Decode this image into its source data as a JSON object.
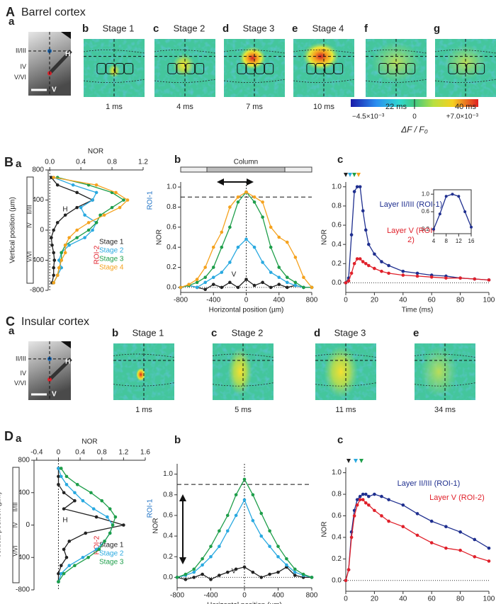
{
  "figure": {
    "sections": [
      {
        "letter": "A",
        "title": "Barrel cortex"
      },
      {
        "letter": "B"
      },
      {
        "letter": "C",
        "title": "Insular cortex"
      },
      {
        "letter": "D"
      }
    ],
    "barrel_images": [
      {
        "panel": "a",
        "layers": [
          "II/III",
          "IV",
          "V/VI"
        ],
        "marks": [
          "H",
          "V"
        ]
      },
      {
        "panel": "b",
        "stage": "Stage 1",
        "time": "1 ms"
      },
      {
        "panel": "c",
        "stage": "Stage 2",
        "time": "4 ms"
      },
      {
        "panel": "d",
        "stage": "Stage 3",
        "time": "7 ms"
      },
      {
        "panel": "e",
        "stage": "Stage 4",
        "time": "10 ms"
      },
      {
        "panel": "f",
        "time": "22 ms"
      },
      {
        "panel": "g",
        "time": "40 ms"
      }
    ],
    "insular_images": [
      {
        "panel": "a",
        "layers": [
          "II/III",
          "IV",
          "V/VI"
        ],
        "marks": [
          "H",
          "V"
        ]
      },
      {
        "panel": "b",
        "stage": "Stage 1",
        "time": "1 ms"
      },
      {
        "panel": "c",
        "stage": "Stage 2",
        "time": "5 ms"
      },
      {
        "panel": "d",
        "stage": "Stage 3",
        "time": "11 ms"
      },
      {
        "panel": "e",
        "time": "34 ms"
      }
    ],
    "colorbar": {
      "min_label": "−4.5×10⁻³",
      "mid_label": "0",
      "max_label": "+7.0×10⁻³",
      "label": "ΔF / F₀"
    }
  },
  "chart_data": [
    {
      "type": "line",
      "panel": "a",
      "xlabel": "NOR",
      "ylabel": "Vertical position (µm)",
      "x_axis_position": "top",
      "legend": "lower right",
      "layers": [
        "II/III",
        "IV",
        "V/VI"
      ],
      "xlim": [
        -0.02,
        1.2
      ],
      "xticks": [
        {
          "value": 0,
          "label": "0.0"
        },
        0.4,
        0.8,
        1.2
      ],
      "ylim": [
        -800,
        800
      ],
      "yticks": [
        800,
        400,
        0,
        -400,
        -800
      ],
      "y": [
        700,
        600,
        500,
        400,
        300,
        200,
        100,
        0,
        -100,
        -200,
        -300,
        -400,
        -500,
        -600,
        -700
      ],
      "annotations": [
        {
          "text": "ROI-1",
          "color": "#1a6fc4"
        },
        {
          "text": "ROI-2",
          "color": "#e0202a"
        },
        {
          "text": "H",
          "color": "#222222"
        }
      ],
      "series": [
        {
          "name": "Stage 1",
          "color": "#222222",
          "values": [
            0.02,
            0.1,
            0.35,
            0.55,
            0.35,
            0.2,
            0.1,
            0.05,
            0.02,
            0.03,
            0.05,
            0.06,
            0.05,
            0.05,
            0.03
          ]
        },
        {
          "name": "Stage 2",
          "color": "#29a9e0",
          "values": [
            0.05,
            0.3,
            0.6,
            0.55,
            0.4,
            0.45,
            0.6,
            0.55,
            0.45,
            0.25,
            0.15,
            0.12,
            0.15,
            0.1,
            0.05
          ]
        },
        {
          "name": "Stage 3",
          "color": "#1e9e4a",
          "values": [
            0.1,
            0.5,
            0.8,
            0.95,
            0.8,
            0.65,
            0.6,
            0.5,
            0.35,
            0.2,
            0.15,
            0.15,
            0.12,
            0.1,
            0.05
          ]
        },
        {
          "name": "Stage 4",
          "color": "#f5a21e",
          "values": [
            0.05,
            0.6,
            0.85,
            1.0,
            0.9,
            0.7,
            0.5,
            0.35,
            0.25,
            0.2,
            0.2,
            0.15,
            0.12,
            0.1,
            0.05
          ]
        }
      ]
    },
    {
      "type": "line",
      "panel": "b",
      "xlabel": "Horizontal position (µm)",
      "ylabel": "NOR",
      "hline": 0.9,
      "annotations": [
        {
          "text": "Column",
          "color": "#222222"
        },
        {
          "text": "V",
          "color": "#222222"
        }
      ],
      "xlim": [
        -800,
        800
      ],
      "xticks": [
        -800,
        -400,
        0,
        400,
        800
      ],
      "ylim": [
        -0.05,
        1.05
      ],
      "yticks": [
        {
          "value": 0,
          "label": "0.0"
        },
        0.2,
        0.4,
        0.6,
        0.8,
        {
          "value": 1,
          "label": "1.0"
        }
      ],
      "x": [
        -800,
        -700,
        -600,
        -500,
        -400,
        -300,
        -200,
        -100,
        0,
        100,
        200,
        300,
        400,
        500,
        600,
        700,
        800
      ],
      "series": [
        {
          "color": "#222222",
          "values": [
            0.0,
            0.02,
            0.0,
            -0.02,
            0.03,
            0.0,
            0.05,
            0.0,
            0.08,
            0.02,
            0.05,
            0.0,
            0.03,
            0.0,
            0.02,
            0.0,
            0.0
          ]
        },
        {
          "color": "#29a9e0",
          "values": [
            0.0,
            0.02,
            0.0,
            0.05,
            0.1,
            0.15,
            0.25,
            0.4,
            0.48,
            0.4,
            0.25,
            0.15,
            0.1,
            0.05,
            0.02,
            0.0,
            0.0
          ]
        },
        {
          "color": "#1e9e4a",
          "values": [
            0.0,
            0.02,
            0.05,
            0.1,
            0.2,
            0.4,
            0.6,
            0.85,
            0.95,
            0.85,
            0.7,
            0.4,
            0.2,
            0.1,
            0.05,
            0.0,
            0.0
          ]
        },
        {
          "color": "#f5a21e",
          "values": [
            0.0,
            0.03,
            0.08,
            0.2,
            0.4,
            0.55,
            0.8,
            0.9,
            0.95,
            0.9,
            0.85,
            0.6,
            0.5,
            0.45,
            0.3,
            0.1,
            0.0
          ]
        }
      ]
    },
    {
      "type": "line",
      "panel": "c",
      "xlabel": "Time (ms)",
      "ylabel": "NOR",
      "legend": "inline",
      "xlim": [
        0,
        100
      ],
      "xticks": [
        0,
        20,
        40,
        60,
        80,
        100
      ],
      "ylim": [
        -0.1,
        1.05
      ],
      "yticks": [
        {
          "value": 0,
          "label": "0.0"
        },
        0.2,
        0.4,
        0.6,
        0.8,
        {
          "value": 1,
          "label": "1.0"
        }
      ],
      "x": [
        0,
        2,
        4,
        6,
        8,
        10,
        12,
        14,
        16,
        20,
        25,
        30,
        40,
        50,
        60,
        70,
        80,
        90,
        100
      ],
      "series": [
        {
          "name": "Layer II/III (ROI-1)",
          "color": "#1f2f8f",
          "values": [
            0,
            0.05,
            0.5,
            0.95,
            1.0,
            1.0,
            0.75,
            0.55,
            0.4,
            0.3,
            0.22,
            0.18,
            0.12,
            0.1,
            0.08,
            0.07,
            0.05,
            0.04,
            0.03
          ]
        },
        {
          "name": "Layer V (ROI-2)",
          "color": "#e0202a",
          "values": [
            0,
            0.02,
            0.1,
            0.2,
            0.25,
            0.25,
            0.22,
            0.2,
            0.18,
            0.15,
            0.12,
            0.1,
            0.08,
            0.07,
            0.06,
            0.05,
            0.05,
            0.04,
            0.03
          ]
        }
      ]
    },
    {
      "type": "line",
      "xlim": [
        4,
        16
      ],
      "xticks": [
        4,
        8,
        12,
        16
      ],
      "ylim": [
        0.1,
        1.1
      ],
      "yticks": [
        0.2,
        0.6,
        {
          "value": 1,
          "label": "1.0"
        }
      ],
      "x": [
        4,
        6,
        8,
        10,
        12,
        14,
        16
      ],
      "series": [
        {
          "color": "#1f2f8f",
          "values": [
            0.2,
            0.55,
            0.95,
            1.0,
            0.95,
            0.6,
            0.25
          ]
        }
      ]
    },
    {
      "type": "line",
      "panel": "a",
      "xlabel": "NOR",
      "ylabel": "Vertical position (µm)",
      "x_axis_position": "top",
      "legend": "lower right",
      "layers": [
        "II/III",
        "IV",
        "V/VI"
      ],
      "xlim": [
        -0.45,
        1.6
      ],
      "xticks": [
        -0.4,
        0,
        0.4,
        0.8,
        1.2,
        1.6
      ],
      "ylim": [
        -800,
        800
      ],
      "yticks": [
        800,
        400,
        0,
        -400,
        -800
      ],
      "y": [
        700,
        600,
        500,
        400,
        300,
        200,
        100,
        0,
        -100,
        -200,
        -300,
        -400,
        -500,
        -600,
        -700
      ],
      "annotations": [
        {
          "text": "ROI-1",
          "color": "#1a6fc4"
        },
        {
          "text": "ROI-2",
          "color": "#e0202a"
        },
        {
          "text": "H",
          "color": "#222222"
        }
      ],
      "series": [
        {
          "name": "Stage 1",
          "color": "#222222",
          "values": [
            0.0,
            0.0,
            0.0,
            0.1,
            0.3,
            0.1,
            0.7,
            1.2,
            0.5,
            0.2,
            0.1,
            0.15,
            0.05,
            0.0,
            0.0
          ]
        },
        {
          "name": "Stage 2",
          "color": "#29a9e0",
          "values": [
            0.0,
            0.05,
            0.15,
            0.3,
            0.45,
            0.65,
            0.9,
            1.0,
            0.95,
            0.85,
            0.7,
            0.45,
            0.2,
            0.05,
            0.0
          ]
        },
        {
          "name": "Stage 3",
          "color": "#1e9e4a",
          "values": [
            0.05,
            0.15,
            0.35,
            0.6,
            0.8,
            0.95,
            1.05,
            1.0,
            0.95,
            0.85,
            0.75,
            0.55,
            0.3,
            0.1,
            0.0
          ]
        }
      ]
    },
    {
      "type": "line",
      "panel": "b",
      "xlabel": "Horizontal position (µm)",
      "ylabel": "NOR",
      "hline": 0.9,
      "annotations": [
        {
          "text": "V",
          "color": "#222222"
        }
      ],
      "xlim": [
        -800,
        800
      ],
      "xticks": [
        -800,
        -400,
        0,
        400,
        800
      ],
      "ylim": [
        -0.1,
        1.1
      ],
      "yticks": [
        {
          "value": 0,
          "label": "0.0"
        },
        0.2,
        0.4,
        0.6,
        0.8,
        {
          "value": 1,
          "label": "1.0"
        }
      ],
      "x": [
        -800,
        -700,
        -600,
        -500,
        -400,
        -300,
        -200,
        -100,
        0,
        100,
        200,
        300,
        400,
        500,
        600,
        700,
        800
      ],
      "series": [
        {
          "color": "#222222",
          "values": [
            0,
            -0.02,
            0.0,
            0.03,
            -0.02,
            0.02,
            0.05,
            0.08,
            0.1,
            0.05,
            0.0,
            0.03,
            0.05,
            0.1,
            0.02,
            0.0,
            0.0
          ]
        },
        {
          "color": "#29a9e0",
          "values": [
            0.0,
            0.02,
            0.05,
            0.12,
            0.2,
            0.3,
            0.45,
            0.6,
            0.75,
            0.55,
            0.4,
            0.3,
            0.2,
            0.12,
            0.05,
            0.02,
            0.0
          ]
        },
        {
          "color": "#1e9e4a",
          "values": [
            0.0,
            0.03,
            0.08,
            0.18,
            0.3,
            0.45,
            0.6,
            0.8,
            0.95,
            0.8,
            0.62,
            0.45,
            0.3,
            0.18,
            0.08,
            0.03,
            0.0
          ]
        }
      ]
    },
    {
      "type": "line",
      "panel": "c",
      "xlabel": "Time (ms)",
      "ylabel": "NOR",
      "legend": "inline",
      "xlim": [
        0,
        100
      ],
      "xticks": [
        0,
        20,
        40,
        60,
        80,
        100
      ],
      "ylim": [
        -0.1,
        1.05
      ],
      "yticks": [
        {
          "value": 0,
          "label": "0.0"
        },
        0.2,
        0.4,
        0.6,
        0.8,
        {
          "value": 1,
          "label": "1.0"
        }
      ],
      "x": [
        0,
        2,
        4,
        6,
        8,
        10,
        12,
        14,
        16,
        20,
        25,
        30,
        40,
        50,
        60,
        70,
        80,
        90,
        100
      ],
      "series": [
        {
          "name": "Layer II/III (ROI-1)",
          "color": "#1f2f8f",
          "values": [
            0,
            0.1,
            0.45,
            0.65,
            0.75,
            0.78,
            0.8,
            0.8,
            0.78,
            0.8,
            0.78,
            0.75,
            0.7,
            0.62,
            0.55,
            0.5,
            0.45,
            0.38,
            0.3
          ]
        },
        {
          "name": "Layer V (ROI-2)",
          "color": "#e0202a",
          "values": [
            0,
            0.1,
            0.4,
            0.6,
            0.7,
            0.75,
            0.75,
            0.72,
            0.7,
            0.65,
            0.6,
            0.55,
            0.5,
            0.42,
            0.35,
            0.3,
            0.28,
            0.22,
            0.18
          ]
        }
      ]
    }
  ]
}
